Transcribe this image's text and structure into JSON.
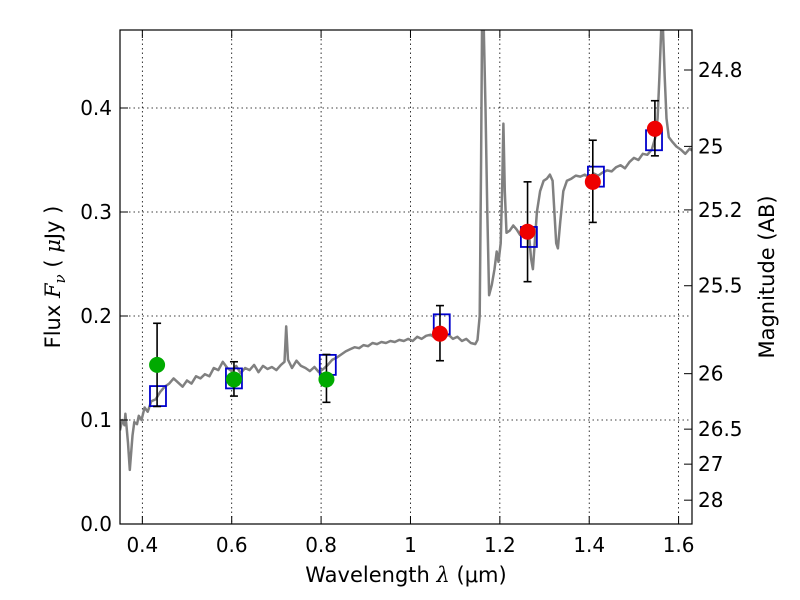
{
  "chart_data": {
    "type": "scatter",
    "title": "",
    "xlabel": "Wavelength  λ (μm)",
    "ylabel": "Flux  F_ν  ( μJy )",
    "xlabel_parts": {
      "main": "Wavelength  ",
      "symbol": "λ",
      "unit": " (μm)"
    },
    "ylabel_parts": {
      "main": "Flux  ",
      "symbol": "F",
      "subscript": "ν",
      "unit_open": "  ( ",
      "unit_symbol": "μ",
      "unit_close": "Jy )"
    },
    "y2label": "Magnitude (AB)",
    "xlim": [
      0.35,
      1.63
    ],
    "ylim": [
      0.0,
      0.475
    ],
    "grid": true,
    "x_ticks": [
      {
        "value": 0.4,
        "label": "0.4"
      },
      {
        "value": 0.6,
        "label": "0.6"
      },
      {
        "value": 0.8,
        "label": "0.8"
      },
      {
        "value": 1.0,
        "label": "1"
      },
      {
        "value": 1.2,
        "label": "1.2"
      },
      {
        "value": 1.4,
        "label": "1.4"
      },
      {
        "value": 1.6,
        "label": "1.6"
      }
    ],
    "y_ticks": [
      {
        "value": 0.0,
        "label": "0.0"
      },
      {
        "value": 0.1,
        "label": "0.1"
      },
      {
        "value": 0.2,
        "label": "0.2"
      },
      {
        "value": 0.3,
        "label": "0.3"
      },
      {
        "value": 0.4,
        "label": "0.4"
      }
    ],
    "y2_ticks": [
      {
        "magnitude": 24.8,
        "label": "24.8"
      },
      {
        "magnitude": 25.0,
        "label": "25"
      },
      {
        "magnitude": 25.2,
        "label": "25.2"
      },
      {
        "magnitude": 25.5,
        "label": "25.5"
      },
      {
        "magnitude": 26.0,
        "label": "26"
      },
      {
        "magnitude": 26.5,
        "label": "26.5"
      },
      {
        "magnitude": 27.0,
        "label": "27"
      },
      {
        "magnitude": 28.0,
        "label": "28"
      }
    ],
    "series": [
      {
        "type": "line",
        "color": "#808080",
        "points": [
          [
            0.35,
            0.09
          ],
          [
            0.355,
            0.1
          ],
          [
            0.36,
            0.095
          ],
          [
            0.362,
            0.106
          ],
          [
            0.368,
            0.078
          ],
          [
            0.372,
            0.052
          ],
          [
            0.378,
            0.085
          ],
          [
            0.382,
            0.098
          ],
          [
            0.388,
            0.096
          ],
          [
            0.392,
            0.104
          ],
          [
            0.398,
            0.1
          ],
          [
            0.405,
            0.112
          ],
          [
            0.412,
            0.108
          ],
          [
            0.42,
            0.118
          ],
          [
            0.43,
            0.12
          ],
          [
            0.44,
            0.127
          ],
          [
            0.45,
            0.132
          ],
          [
            0.46,
            0.135
          ],
          [
            0.47,
            0.14
          ],
          [
            0.48,
            0.136
          ],
          [
            0.49,
            0.132
          ],
          [
            0.5,
            0.138
          ],
          [
            0.51,
            0.135
          ],
          [
            0.52,
            0.142
          ],
          [
            0.53,
            0.14
          ],
          [
            0.54,
            0.144
          ],
          [
            0.55,
            0.142
          ],
          [
            0.56,
            0.15
          ],
          [
            0.57,
            0.148
          ],
          [
            0.58,
            0.156
          ],
          [
            0.59,
            0.15
          ],
          [
            0.6,
            0.147
          ],
          [
            0.61,
            0.152
          ],
          [
            0.62,
            0.145
          ],
          [
            0.63,
            0.15
          ],
          [
            0.64,
            0.148
          ],
          [
            0.65,
            0.153
          ],
          [
            0.66,
            0.146
          ],
          [
            0.67,
            0.152
          ],
          [
            0.68,
            0.149
          ],
          [
            0.69,
            0.151
          ],
          [
            0.7,
            0.148
          ],
          [
            0.71,
            0.153
          ],
          [
            0.718,
            0.156
          ],
          [
            0.722,
            0.19
          ],
          [
            0.726,
            0.158
          ],
          [
            0.735,
            0.15
          ],
          [
            0.745,
            0.157
          ],
          [
            0.755,
            0.152
          ],
          [
            0.765,
            0.15
          ],
          [
            0.775,
            0.147
          ],
          [
            0.785,
            0.151
          ],
          [
            0.795,
            0.146
          ],
          [
            0.805,
            0.149
          ],
          [
            0.815,
            0.153
          ],
          [
            0.825,
            0.158
          ],
          [
            0.835,
            0.16
          ],
          [
            0.845,
            0.163
          ],
          [
            0.855,
            0.166
          ],
          [
            0.865,
            0.168
          ],
          [
            0.875,
            0.17
          ],
          [
            0.885,
            0.169
          ],
          [
            0.895,
            0.172
          ],
          [
            0.905,
            0.171
          ],
          [
            0.915,
            0.174
          ],
          [
            0.925,
            0.173
          ],
          [
            0.935,
            0.175
          ],
          [
            0.945,
            0.174
          ],
          [
            0.955,
            0.176
          ],
          [
            0.965,
            0.175
          ],
          [
            0.975,
            0.177
          ],
          [
            0.985,
            0.176
          ],
          [
            0.995,
            0.178
          ],
          [
            1.005,
            0.176
          ],
          [
            1.015,
            0.18
          ],
          [
            1.025,
            0.178
          ],
          [
            1.035,
            0.181
          ],
          [
            1.045,
            0.182
          ],
          [
            1.055,
            0.179
          ],
          [
            1.065,
            0.183
          ],
          [
            1.075,
            0.18
          ],
          [
            1.085,
            0.182
          ],
          [
            1.095,
            0.178
          ],
          [
            1.105,
            0.18
          ],
          [
            1.115,
            0.176
          ],
          [
            1.125,
            0.178
          ],
          [
            1.135,
            0.174
          ],
          [
            1.145,
            0.173
          ],
          [
            1.15,
            0.177
          ],
          [
            1.155,
            0.2
          ],
          [
            1.158,
            0.35
          ],
          [
            1.16,
            0.475
          ],
          [
            1.164,
            0.475
          ],
          [
            1.168,
            0.4
          ],
          [
            1.172,
            0.3
          ],
          [
            1.176,
            0.22
          ],
          [
            1.182,
            0.23
          ],
          [
            1.188,
            0.245
          ],
          [
            1.193,
            0.262
          ],
          [
            1.197,
            0.252
          ],
          [
            1.202,
            0.27
          ],
          [
            1.205,
            0.32
          ],
          [
            1.208,
            0.385
          ],
          [
            1.211,
            0.32
          ],
          [
            1.215,
            0.28
          ],
          [
            1.222,
            0.282
          ],
          [
            1.23,
            0.287
          ],
          [
            1.238,
            0.283
          ],
          [
            1.245,
            0.278
          ],
          [
            1.252,
            0.282
          ],
          [
            1.258,
            0.278
          ],
          [
            1.262,
            0.282
          ],
          [
            1.266,
            0.275
          ],
          [
            1.27,
            0.255
          ],
          [
            1.274,
            0.245
          ],
          [
            1.278,
            0.27
          ],
          [
            1.283,
            0.3
          ],
          [
            1.29,
            0.32
          ],
          [
            1.298,
            0.33
          ],
          [
            1.305,
            0.332
          ],
          [
            1.312,
            0.336
          ],
          [
            1.318,
            0.33
          ],
          [
            1.322,
            0.3
          ],
          [
            1.326,
            0.27
          ],
          [
            1.33,
            0.265
          ],
          [
            1.335,
            0.29
          ],
          [
            1.342,
            0.32
          ],
          [
            1.35,
            0.33
          ],
          [
            1.36,
            0.332
          ],
          [
            1.37,
            0.335
          ],
          [
            1.38,
            0.334
          ],
          [
            1.39,
            0.336
          ],
          [
            1.4,
            0.333
          ],
          [
            1.41,
            0.337
          ],
          [
            1.42,
            0.335
          ],
          [
            1.43,
            0.338
          ],
          [
            1.44,
            0.34
          ],
          [
            1.45,
            0.339
          ],
          [
            1.46,
            0.343
          ],
          [
            1.47,
            0.345
          ],
          [
            1.48,
            0.342
          ],
          [
            1.49,
            0.348
          ],
          [
            1.5,
            0.352
          ],
          [
            1.51,
            0.35
          ],
          [
            1.52,
            0.356
          ],
          [
            1.53,
            0.355
          ],
          [
            1.54,
            0.36
          ],
          [
            1.548,
            0.372
          ],
          [
            1.553,
            0.39
          ],
          [
            1.557,
            0.43
          ],
          [
            1.561,
            0.475
          ],
          [
            1.565,
            0.475
          ],
          [
            1.569,
            0.43
          ],
          [
            1.573,
            0.39
          ],
          [
            1.578,
            0.372
          ],
          [
            1.585,
            0.368
          ],
          [
            1.595,
            0.363
          ],
          [
            1.605,
            0.36
          ],
          [
            1.615,
            0.356
          ],
          [
            1.625,
            0.361
          ],
          [
            1.63,
            0.359
          ]
        ]
      },
      {
        "type": "boxes",
        "color": "#0000cc",
        "points": [
          {
            "x": 0.435,
            "y": 0.123
          },
          {
            "x": 0.605,
            "y": 0.14
          },
          {
            "x": 0.815,
            "y": 0.153
          },
          {
            "x": 1.07,
            "y": 0.192
          },
          {
            "x": 1.265,
            "y": 0.276
          },
          {
            "x": 1.415,
            "y": 0.334
          },
          {
            "x": 1.545,
            "y": 0.369
          }
        ]
      },
      {
        "type": "points",
        "color": "#00aa00",
        "points": [
          {
            "x": 0.433,
            "y": 0.153,
            "err_lo": 0.113,
            "err_hi": 0.193
          },
          {
            "x": 0.605,
            "y": 0.139,
            "err_lo": 0.123,
            "err_hi": 0.156
          },
          {
            "x": 0.812,
            "y": 0.139,
            "err_lo": 0.117,
            "err_hi": 0.163
          }
        ]
      },
      {
        "type": "points",
        "color": "#ee0000",
        "points": [
          {
            "x": 1.066,
            "y": 0.183,
            "err_lo": 0.157,
            "err_hi": 0.21
          },
          {
            "x": 1.262,
            "y": 0.281,
            "err_lo": 0.233,
            "err_hi": 0.329
          },
          {
            "x": 1.408,
            "y": 0.329,
            "err_lo": 0.29,
            "err_hi": 0.369
          },
          {
            "x": 1.547,
            "y": 0.38,
            "err_lo": 0.354,
            "err_hi": 0.407
          }
        ]
      }
    ]
  }
}
